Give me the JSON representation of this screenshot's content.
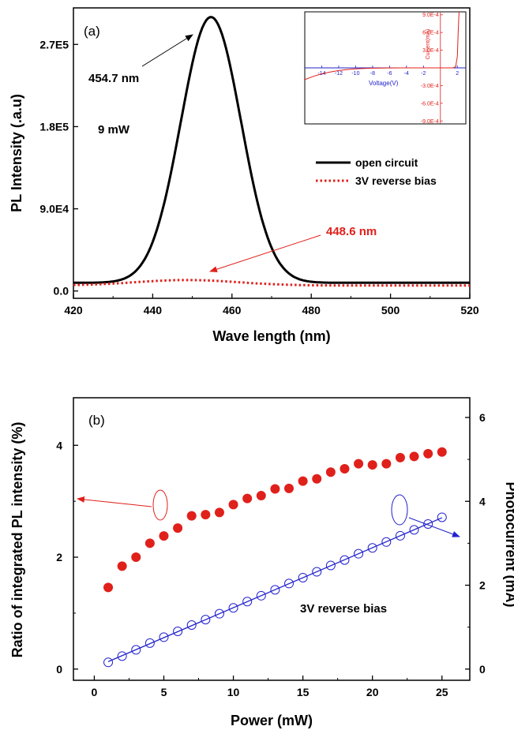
{
  "colors": {
    "black": "#000000",
    "red": "#e0201b",
    "blue": "#2222cc"
  },
  "chart_data": [
    {
      "type": "line",
      "panel_label": "(a)",
      "xlabel": "Wave length (nm)",
      "ylabel": "PL Intensity (.a.u)",
      "xlim": [
        420,
        520
      ],
      "ylim": [
        -8000,
        310000
      ],
      "x_ticks": [
        420,
        440,
        460,
        480,
        500,
        520
      ],
      "x_tick_labels": [
        "420",
        "440",
        "460",
        "480",
        "500",
        "520"
      ],
      "y_ticks": [
        0,
        90000,
        180000,
        270000
      ],
      "y_tick_labels": [
        "0.0",
        "9.0E4",
        "1.8E5",
        "2.7E5"
      ],
      "series": [
        {
          "name": "open circuit",
          "style": "solid",
          "color": "#000000",
          "peak_x": 454.7,
          "peak_y": 300000,
          "baseline_y": 9000,
          "sigma": 7.6
        },
        {
          "name": "3V reverse bias",
          "style": "dotted",
          "color": "#e0201b",
          "peak_x": 448.6,
          "peak_y": 12000,
          "baseline_y": 6000,
          "sigma": 13
        }
      ],
      "annotations": [
        {
          "text": "454.7 nm",
          "color": "#000000"
        },
        {
          "text": "9 mW",
          "color": "#000000"
        },
        {
          "text": "448.6 nm",
          "color": "#e0201b"
        }
      ],
      "legend_position": "right",
      "inset": {
        "type": "line",
        "xlabel": "Voltage(V)",
        "ylabel": "Current(mA)",
        "xlim": [
          -16,
          3
        ],
        "ylim": [
          -0.00095,
          0.00095
        ],
        "x_ticks": [
          -14,
          -12,
          -10,
          -8,
          -6,
          -4,
          -2,
          2
        ],
        "x_tick_labels": [
          "-14",
          "-12",
          "-10",
          "-8",
          "-6",
          "-4",
          "-2",
          "2"
        ],
        "y_ticks": [
          0.0009,
          0.0006,
          0.0003,
          -0.0003,
          -0.0006,
          -0.0009
        ],
        "y_tick_labels": [
          "9.0E-4",
          "6.0E-4",
          "3.0E-4",
          "-3.0E-4",
          "-6.0E-4",
          "-9.0E-4"
        ],
        "series": [
          {
            "color": "#e0201b",
            "x": [
              -16,
              -15,
              -14,
              -13,
              -12,
              -11,
              -10,
              -9,
              -8,
              -6,
              -4,
              -2,
              0,
              1.5,
              1.8,
              2.0,
              2.1,
              2.2
            ],
            "y": [
              -0.0002,
              -0.000145,
              -0.0001,
              -7e-05,
              -4.5e-05,
              -2.8e-05,
              -1.8e-05,
              -1e-05,
              -6e-06,
              -2e-06,
              0,
              0,
              0,
              0,
              2e-05,
              0.0002,
              0.0006,
              0.00095
            ]
          }
        ]
      }
    },
    {
      "type": "scatter",
      "panel_label": "(b)",
      "xlabel": "Power (mW)",
      "ylabel": "Ratio of integrated PL intensity (%)",
      "ylabel_right": "Photocurrent (mA)",
      "xlim": [
        -1.5,
        27
      ],
      "ylim": [
        -0.2,
        4.85
      ],
      "ylim_right": [
        -0.267,
        6.47
      ],
      "x_ticks": [
        0,
        5,
        10,
        15,
        20,
        25
      ],
      "x_tick_labels": [
        "0",
        "5",
        "10",
        "15",
        "20",
        "25"
      ],
      "y_ticks": [
        0,
        2,
        4
      ],
      "y_tick_labels": [
        "0",
        "2",
        "4"
      ],
      "y_ticks_right": [
        0,
        2,
        4,
        6
      ],
      "y_tick_labels_right": [
        "0",
        "2",
        "4",
        "6"
      ],
      "annotation": "3V reverse bias",
      "series": [
        {
          "axis": "left",
          "color": "#e0201b",
          "marker": "filled-circle",
          "x": [
            1,
            2,
            3,
            4,
            5,
            6,
            7,
            8,
            9,
            10,
            11,
            12,
            13,
            14,
            15,
            16,
            17,
            18,
            19,
            20,
            21,
            22,
            23,
            24,
            25
          ],
          "y": [
            1.46,
            1.84,
            2.0,
            2.25,
            2.38,
            2.52,
            2.74,
            2.76,
            2.8,
            2.94,
            3.05,
            3.1,
            3.22,
            3.23,
            3.36,
            3.4,
            3.52,
            3.58,
            3.67,
            3.65,
            3.67,
            3.78,
            3.8,
            3.85,
            3.88
          ]
        },
        {
          "axis": "right",
          "color": "#2222cc",
          "marker": "open-circle",
          "fit_line": true,
          "x": [
            1,
            2,
            3,
            4,
            5,
            6,
            7,
            8,
            9,
            10,
            11,
            12,
            13,
            14,
            15,
            16,
            17,
            18,
            19,
            20,
            21,
            22,
            23,
            24,
            25
          ],
          "y": [
            0.16,
            0.31,
            0.46,
            0.62,
            0.76,
            0.9,
            1.05,
            1.18,
            1.32,
            1.46,
            1.61,
            1.75,
            1.89,
            2.04,
            2.18,
            2.32,
            2.47,
            2.6,
            2.75,
            2.89,
            3.03,
            3.18,
            3.32,
            3.46,
            3.62
          ]
        }
      ]
    }
  ]
}
